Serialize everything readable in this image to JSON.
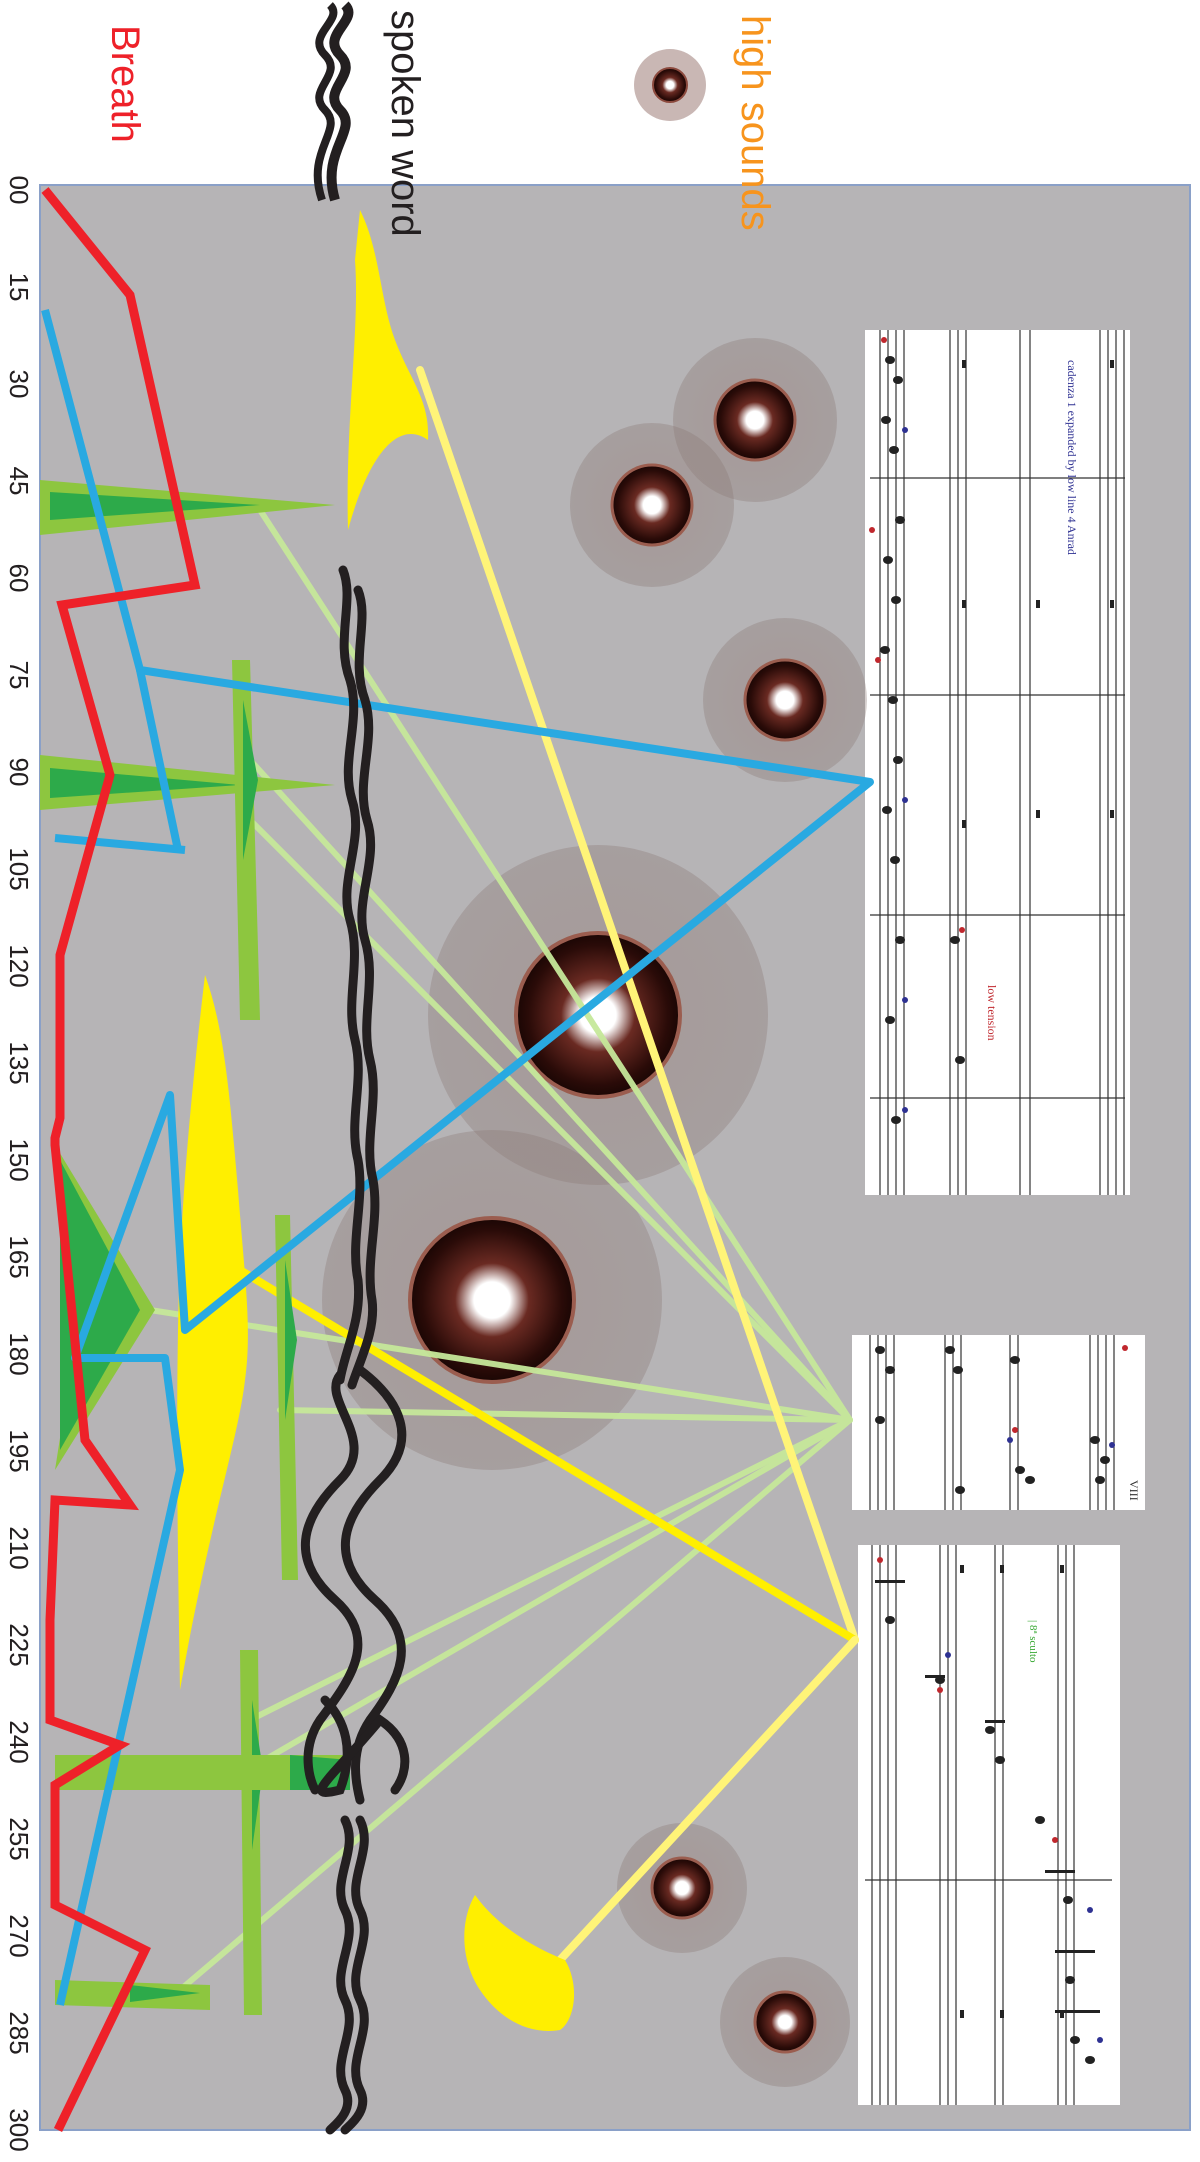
{
  "legend": {
    "high_sounds": "high sounds",
    "spoken_word": "spoken word",
    "breath": "Breath"
  },
  "timeline": [
    "00",
    "15",
    "30",
    "45",
    "60",
    "75",
    "90",
    "105",
    "120",
    "135",
    "150",
    "165",
    "180",
    "195",
    "210",
    "225",
    "240",
    "255",
    "270",
    "285",
    "300"
  ],
  "scores": {
    "score1_title": "cadenza 1 expanded by low line 4 Anrad",
    "score1_marking": "low tension",
    "score2_number": "VIII",
    "score3_marking": "| 8ª sculto"
  },
  "colors": {
    "panel": "#b6b4b6",
    "breath": "#ee2129",
    "blue": "#29a9e1",
    "green_light": "#8dc63f",
    "green_dark": "#2daa4a",
    "yellow": "#ffef00",
    "yellow_light": "#fff478",
    "spoken": "#231f20",
    "high_sounds_label": "#f7941d",
    "breath_label": "#ee2129"
  }
}
